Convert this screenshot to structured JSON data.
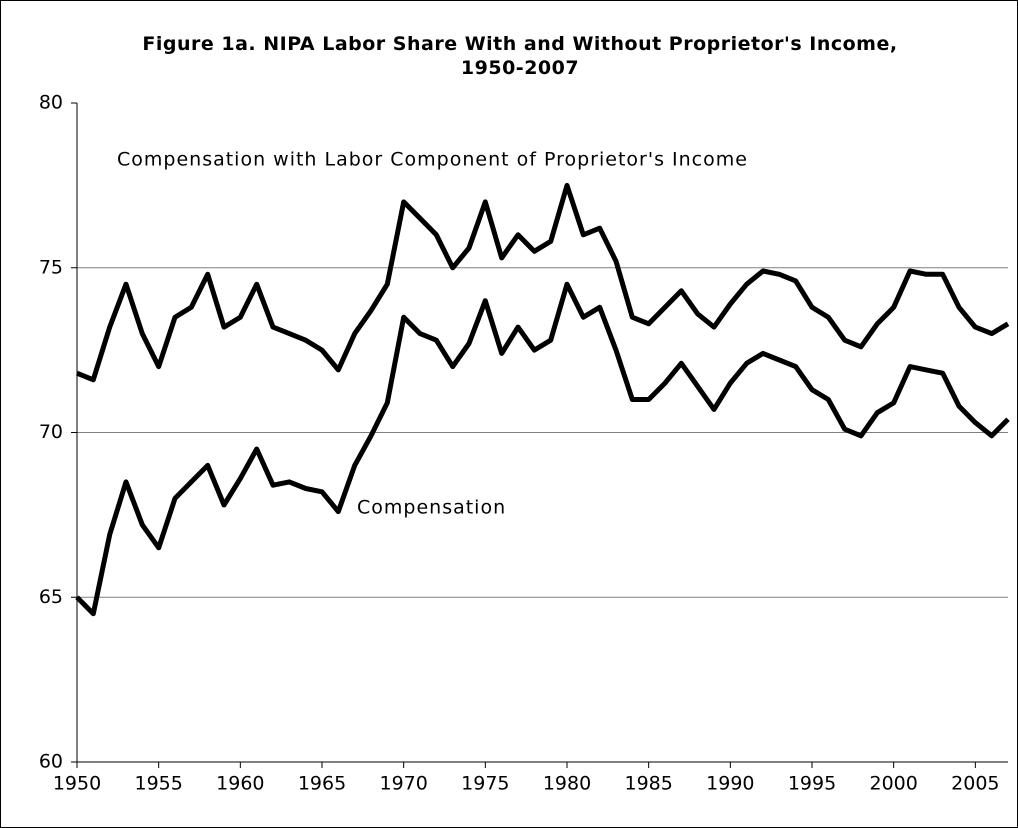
{
  "chart_data": {
    "type": "line",
    "title": "Figure 1a. NIPA Labor Share With and Without Proprietor's Income, 1950-2007",
    "annotations": [
      "Compensation with Labor Component of Proprietor's Income",
      "Compensation"
    ],
    "x": [
      1950,
      1951,
      1952,
      1953,
      1954,
      1955,
      1956,
      1957,
      1958,
      1959,
      1960,
      1961,
      1962,
      1963,
      1964,
      1965,
      1966,
      1967,
      1968,
      1969,
      1970,
      1971,
      1972,
      1973,
      1974,
      1975,
      1976,
      1977,
      1978,
      1979,
      1980,
      1981,
      1982,
      1983,
      1984,
      1985,
      1986,
      1987,
      1988,
      1989,
      1990,
      1991,
      1992,
      1993,
      1994,
      1995,
      1996,
      1997,
      1998,
      1999,
      2000,
      2001,
      2002,
      2003,
      2004,
      2005,
      2006,
      2007
    ],
    "series": [
      {
        "name": "Compensation with Labor Component of Proprietor's Income",
        "color": "#000000",
        "values": [
          71.8,
          71.6,
          73.2,
          74.5,
          73.0,
          72.0,
          73.5,
          73.8,
          74.8,
          73.2,
          73.5,
          74.5,
          73.2,
          73.0,
          72.8,
          72.5,
          71.9,
          73.0,
          73.7,
          74.5,
          77.0,
          76.5,
          76.0,
          75.0,
          75.6,
          77.0,
          75.3,
          76.0,
          75.5,
          75.8,
          77.5,
          76.0,
          76.2,
          75.2,
          73.5,
          73.3,
          73.8,
          74.3,
          73.6,
          73.2,
          73.9,
          74.5,
          74.9,
          74.8,
          74.6,
          73.8,
          73.5,
          72.8,
          72.6,
          73.3,
          73.8,
          74.9,
          74.8,
          74.8,
          73.8,
          73.2,
          73.0,
          73.3
        ]
      },
      {
        "name": "Compensation",
        "color": "#000000",
        "values": [
          65.0,
          64.5,
          66.9,
          68.5,
          67.2,
          66.5,
          68.0,
          68.5,
          69.0,
          67.8,
          68.6,
          69.5,
          68.4,
          68.5,
          68.3,
          68.2,
          67.6,
          69.0,
          69.9,
          70.9,
          73.5,
          73.0,
          72.8,
          72.0,
          72.7,
          74.0,
          72.4,
          73.2,
          72.5,
          72.8,
          74.5,
          73.5,
          73.8,
          72.5,
          71.0,
          71.0,
          71.5,
          72.1,
          71.4,
          70.7,
          71.5,
          72.1,
          72.4,
          72.2,
          72.0,
          71.3,
          71.0,
          70.1,
          69.9,
          70.6,
          70.9,
          72.0,
          71.9,
          71.8,
          70.8,
          70.3,
          69.9,
          70.4
        ]
      }
    ],
    "xlim": [
      1950,
      2007
    ],
    "xticks": [
      1950,
      1955,
      1960,
      1965,
      1970,
      1975,
      1980,
      1985,
      1990,
      1995,
      2000,
      2005
    ],
    "ylim": [
      60,
      80
    ],
    "yticks": [
      60,
      65,
      70,
      75,
      80
    ],
    "grid": true
  }
}
